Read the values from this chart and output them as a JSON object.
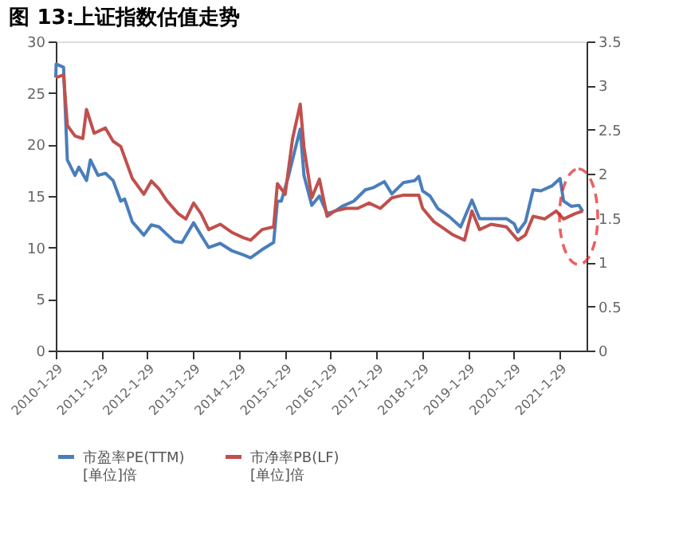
{
  "chart_data": {
    "type": "line",
    "title": "图 13:上证指数估值走势",
    "xlim": [
      "2010-01-29",
      "2021-08-31"
    ],
    "xticks": [
      {
        "value": "2010-01-29",
        "label": "2010-1-29"
      },
      {
        "value": "2011-01-29",
        "label": "2011-1-29"
      },
      {
        "value": "2012-01-29",
        "label": "2012-1-29"
      },
      {
        "value": "2013-01-29",
        "label": "2013-1-29"
      },
      {
        "value": "2014-01-29",
        "label": "2014-1-29"
      },
      {
        "value": "2015-01-29",
        "label": "2015-1-29"
      },
      {
        "value": "2016-01-29",
        "label": "2016-1-29"
      },
      {
        "value": "2017-01-29",
        "label": "2017-1-29"
      },
      {
        "value": "2018-01-29",
        "label": "2018-1-29"
      },
      {
        "value": "2019-01-29",
        "label": "2019-1-29"
      },
      {
        "value": "2020-01-29",
        "label": "2020-1-29"
      },
      {
        "value": "2021-01-29",
        "label": "2021-1-29"
      }
    ],
    "ylim": [
      0,
      30
    ],
    "yticks": [
      0,
      5,
      10,
      15,
      20,
      25,
      30
    ],
    "y2lim": [
      0,
      3.5
    ],
    "y2ticks": [
      0,
      0.5,
      1,
      1.5,
      2,
      2.5,
      3,
      3.5
    ],
    "grid": false,
    "legend": "bottom",
    "line_style": "solid",
    "series": [
      {
        "name": "市盈率PE(TTM)\n[单位]倍",
        "color": "#4a7ebb",
        "x": [
          "2010-01-29",
          "2010-02",
          "2010-04",
          "2010-05",
          "2010-07",
          "2010-08",
          "2010-10",
          "2010-11",
          "2011-01",
          "2011-03",
          "2011-05",
          "2011-07",
          "2011-08",
          "2011-10",
          "2012-01",
          "2012-03",
          "2012-05",
          "2012-07",
          "2012-09",
          "2012-11",
          "2013-02",
          "2013-04",
          "2013-06",
          "2013-09",
          "2013-12",
          "2014-03",
          "2014-05",
          "2014-08",
          "2014-11",
          "2014-12",
          "2015-01",
          "2015-03",
          "2015-05",
          "2015-06",
          "2015-07",
          "2015-09",
          "2015-11",
          "2016-01",
          "2016-03",
          "2016-05",
          "2016-08",
          "2016-11",
          "2017-01",
          "2017-04",
          "2017-06",
          "2017-09",
          "2017-12",
          "2018-01",
          "2018-02",
          "2018-04",
          "2018-06",
          "2018-09",
          "2018-12",
          "2019-03",
          "2019-05",
          "2019-08",
          "2019-12",
          "2020-02",
          "2020-03",
          "2020-05",
          "2020-07",
          "2020-09",
          "2020-12",
          "2021-02",
          "2021-03",
          "2021-05",
          "2021-07",
          "2021-08"
        ],
        "values": [
          26.5,
          27.8,
          27.5,
          18.5,
          17,
          17.8,
          16.5,
          18.5,
          17,
          17.2,
          16.5,
          14.5,
          14.7,
          12.5,
          11.2,
          12.2,
          12,
          11.3,
          10.6,
          10.5,
          12.4,
          11.2,
          10,
          10.4,
          9.7,
          9.3,
          9,
          9.8,
          10.5,
          14.5,
          14.5,
          17,
          20,
          21.5,
          17,
          14.1,
          15,
          13.3,
          13.5,
          14,
          14.5,
          15.6,
          15.8,
          16.4,
          15.2,
          16.3,
          16.5,
          16.9,
          15.5,
          15,
          13.8,
          13,
          12,
          14.6,
          12.8,
          12.8,
          12.8,
          12.3,
          11.5,
          12.5,
          15.6,
          15.5,
          16,
          16.7,
          14.5,
          14,
          14.1,
          13.5
        ]
      },
      {
        "name": "市净率PB(LF)\n[单位]倍",
        "color": "#c0504d",
        "axis": "y2",
        "x": [
          "2010-01-29",
          "2010-04",
          "2010-05",
          "2010-07",
          "2010-09",
          "2010-10",
          "2010-12",
          "2011-03",
          "2011-05",
          "2011-07",
          "2011-10",
          "2012-01",
          "2012-03",
          "2012-05",
          "2012-07",
          "2012-10",
          "2012-12",
          "2013-02",
          "2013-04",
          "2013-06",
          "2013-09",
          "2013-12",
          "2014-03",
          "2014-05",
          "2014-08",
          "2014-11",
          "2014-12",
          "2015-02",
          "2015-04",
          "2015-06",
          "2015-07",
          "2015-09",
          "2015-11",
          "2016-01",
          "2016-03",
          "2016-06",
          "2016-09",
          "2016-12",
          "2017-03",
          "2017-06",
          "2017-09",
          "2018-01",
          "2018-02",
          "2018-05",
          "2018-08",
          "2018-10",
          "2019-01",
          "2019-03",
          "2019-05",
          "2019-08",
          "2019-12",
          "2020-03",
          "2020-05",
          "2020-07",
          "2020-10",
          "2021-01",
          "2021-03",
          "2021-06",
          "2021-08"
        ],
        "values": [
          3.09,
          3.12,
          2.55,
          2.43,
          2.4,
          2.73,
          2.46,
          2.52,
          2.37,
          2.31,
          1.95,
          1.77,
          1.92,
          1.83,
          1.7,
          1.55,
          1.49,
          1.67,
          1.55,
          1.37,
          1.43,
          1.34,
          1.28,
          1.25,
          1.37,
          1.4,
          1.89,
          1.77,
          2.4,
          2.79,
          2.3,
          1.73,
          1.94,
          1.52,
          1.58,
          1.61,
          1.61,
          1.67,
          1.61,
          1.73,
          1.76,
          1.76,
          1.61,
          1.46,
          1.37,
          1.31,
          1.25,
          1.58,
          1.37,
          1.43,
          1.4,
          1.25,
          1.31,
          1.52,
          1.49,
          1.58,
          1.49,
          1.55,
          1.58
        ]
      }
    ]
  }
}
